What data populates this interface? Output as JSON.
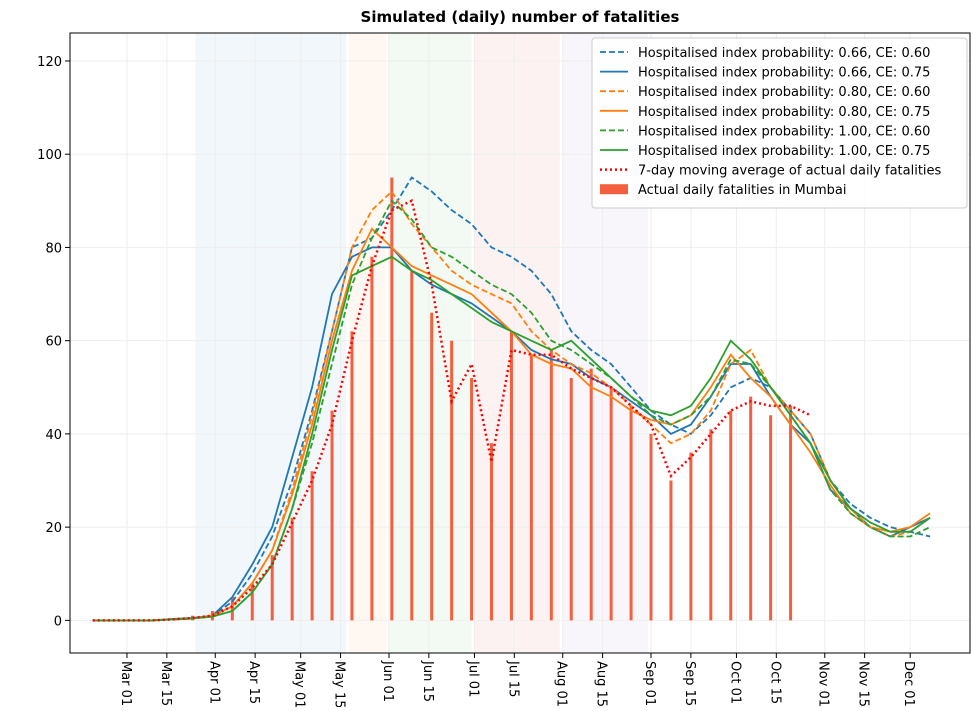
{
  "chart_data": {
    "type": "line",
    "title": "Simulated (daily) number of fatalities",
    "x": [
      "02-18",
      "02-25",
      "03-03",
      "03-10",
      "03-17",
      "03-24",
      "03-31",
      "04-07",
      "04-14",
      "04-21",
      "04-28",
      "05-05",
      "05-12",
      "05-19",
      "05-26",
      "06-02",
      "06-09",
      "06-16",
      "06-23",
      "06-30",
      "07-07",
      "07-14",
      "07-21",
      "07-28",
      "08-04",
      "08-11",
      "08-18",
      "08-25",
      "09-01",
      "09-08",
      "09-15",
      "09-22",
      "09-29",
      "10-06",
      "10-13",
      "10-20",
      "10-27",
      "11-03",
      "11-10",
      "11-17",
      "11-24",
      "12-01",
      "12-08"
    ],
    "xlim": [
      "02-10",
      "12-22"
    ],
    "xticks": [
      {
        "value": "03-01",
        "label": "Mar 01"
      },
      {
        "value": "03-15",
        "label": "Mar 15"
      },
      {
        "value": "04-01",
        "label": "Apr 01"
      },
      {
        "value": "04-15",
        "label": "Apr 15"
      },
      {
        "value": "05-01",
        "label": "May 01"
      },
      {
        "value": "05-15",
        "label": "May 15"
      },
      {
        "value": "06-01",
        "label": "Jun 01"
      },
      {
        "value": "06-15",
        "label": "Jun 15"
      },
      {
        "value": "07-01",
        "label": "Jul 01"
      },
      {
        "value": "07-15",
        "label": "Jul 15"
      },
      {
        "value": "08-01",
        "label": "Aug 01"
      },
      {
        "value": "08-15",
        "label": "Aug 15"
      },
      {
        "value": "09-01",
        "label": "Sep 01"
      },
      {
        "value": "09-15",
        "label": "Sep 15"
      },
      {
        "value": "10-01",
        "label": "Oct 01"
      },
      {
        "value": "10-15",
        "label": "Oct 15"
      },
      {
        "value": "11-01",
        "label": "Nov 01"
      },
      {
        "value": "11-15",
        "label": "Nov 15"
      },
      {
        "value": "12-01",
        "label": "Dec 01"
      }
    ],
    "ylim": [
      -7,
      126
    ],
    "yticks": [
      0,
      20,
      40,
      60,
      80,
      100,
      120
    ],
    "grid": true,
    "legend": "upper right",
    "shaded_spans": [
      {
        "start": "03-25",
        "end": "05-17",
        "color": "#1f77b4"
      },
      {
        "start": "05-18",
        "end": "05-31",
        "color": "#ff7f0e"
      },
      {
        "start": "06-01",
        "end": "06-30",
        "color": "#2ca02c"
      },
      {
        "start": "07-01",
        "end": "07-31",
        "color": "#d62728"
      },
      {
        "start": "08-01",
        "end": "08-31",
        "color": "#9467bd"
      }
    ],
    "series": [
      {
        "name": "Hospitalised index probability: 0.66, CE: 0.60",
        "color": "#1f77b4",
        "style": "dashed",
        "values": [
          0,
          0,
          0,
          0,
          0.3,
          0.5,
          1,
          4,
          10,
          18,
          30,
          45,
          62,
          80,
          82,
          88,
          95,
          92,
          88,
          85,
          80,
          78,
          75,
          70,
          62,
          58,
          55,
          50,
          45,
          42,
          40,
          44,
          50,
          52,
          50,
          45,
          40,
          30,
          25,
          22,
          20,
          19,
          18
        ]
      },
      {
        "name": "Hospitalised index probability: 0.66, CE: 0.75",
        "color": "#1f77b4",
        "style": "solid",
        "values": [
          0,
          0,
          0,
          0,
          0.3,
          0.5,
          1,
          5,
          12,
          20,
          35,
          50,
          70,
          78,
          80,
          80,
          75,
          72,
          70,
          68,
          65,
          62,
          58,
          56,
          55,
          52,
          50,
          47,
          44,
          40,
          42,
          48,
          55,
          55,
          48,
          42,
          38,
          28,
          24,
          20,
          18,
          20,
          22
        ]
      },
      {
        "name": "Hospitalised index probability: 0.80, CE: 0.60",
        "color": "#ff7f0e",
        "style": "dashed",
        "values": [
          0,
          0,
          0,
          0,
          0.2,
          0.4,
          1,
          3,
          8,
          15,
          28,
          44,
          62,
          80,
          88,
          92,
          85,
          80,
          75,
          72,
          70,
          68,
          62,
          58,
          55,
          53,
          50,
          46,
          42,
          38,
          40,
          45,
          55,
          58,
          50,
          45,
          40,
          30,
          24,
          20,
          18,
          19,
          22
        ]
      },
      {
        "name": "Hospitalised index probability: 0.80, CE: 0.75",
        "color": "#ff7f0e",
        "style": "solid",
        "values": [
          0,
          0,
          0,
          0,
          0.2,
          0.4,
          1,
          3,
          8,
          15,
          27,
          42,
          60,
          75,
          84,
          80,
          76,
          74,
          72,
          70,
          66,
          62,
          57,
          55,
          54,
          50,
          48,
          45,
          43,
          42,
          44,
          50,
          57,
          52,
          48,
          42,
          36,
          29,
          23,
          20,
          19,
          20,
          23
        ]
      },
      {
        "name": "Hospitalised index probability: 1.00, CE: 0.60",
        "color": "#2ca02c",
        "style": "dashed",
        "values": [
          0,
          0,
          0,
          0,
          0.2,
          0.4,
          0.8,
          2,
          6,
          12,
          24,
          38,
          55,
          72,
          82,
          90,
          86,
          80,
          78,
          75,
          72,
          70,
          66,
          60,
          58,
          55,
          52,
          48,
          44,
          42,
          44,
          48,
          56,
          55,
          50,
          44,
          38,
          28,
          23,
          20,
          18,
          18,
          20
        ]
      },
      {
        "name": "Hospitalised index probability: 1.00, CE: 0.75",
        "color": "#2ca02c",
        "style": "solid",
        "values": [
          0,
          0,
          0,
          0,
          0.2,
          0.4,
          0.8,
          2,
          6,
          12,
          24,
          40,
          58,
          74,
          76,
          78,
          75,
          73,
          70,
          67,
          64,
          62,
          60,
          58,
          60,
          56,
          52,
          48,
          45,
          44,
          46,
          52,
          60,
          56,
          50,
          44,
          38,
          30,
          24,
          21,
          19,
          19,
          22
        ]
      },
      {
        "name": "7-day moving average of actual daily fatalities",
        "color": "#ff0000",
        "style": "dotted",
        "values": [
          0,
          0,
          0,
          0,
          0.2,
          0.5,
          1,
          3,
          7,
          12,
          21,
          30,
          42,
          60,
          76,
          88,
          90,
          72,
          47,
          55,
          34,
          58,
          57,
          57,
          54,
          52,
          50,
          46,
          42,
          31,
          35,
          40,
          45,
          47,
          46,
          46,
          44,
          null,
          null,
          null,
          null,
          null,
          null
        ]
      },
      {
        "name": "Actual daily fatalities in Mumbai",
        "color": "#f4603f",
        "style": "bar",
        "values": [
          0,
          0,
          0,
          0,
          0,
          1,
          2,
          5,
          8,
          14,
          22,
          32,
          45,
          62,
          78,
          95,
          75,
          66,
          60,
          52,
          38,
          62,
          57,
          58,
          52,
          54,
          50,
          46,
          40,
          30,
          36,
          41,
          45,
          48,
          44,
          46,
          null,
          null,
          null,
          null,
          null,
          null,
          null
        ]
      }
    ]
  }
}
